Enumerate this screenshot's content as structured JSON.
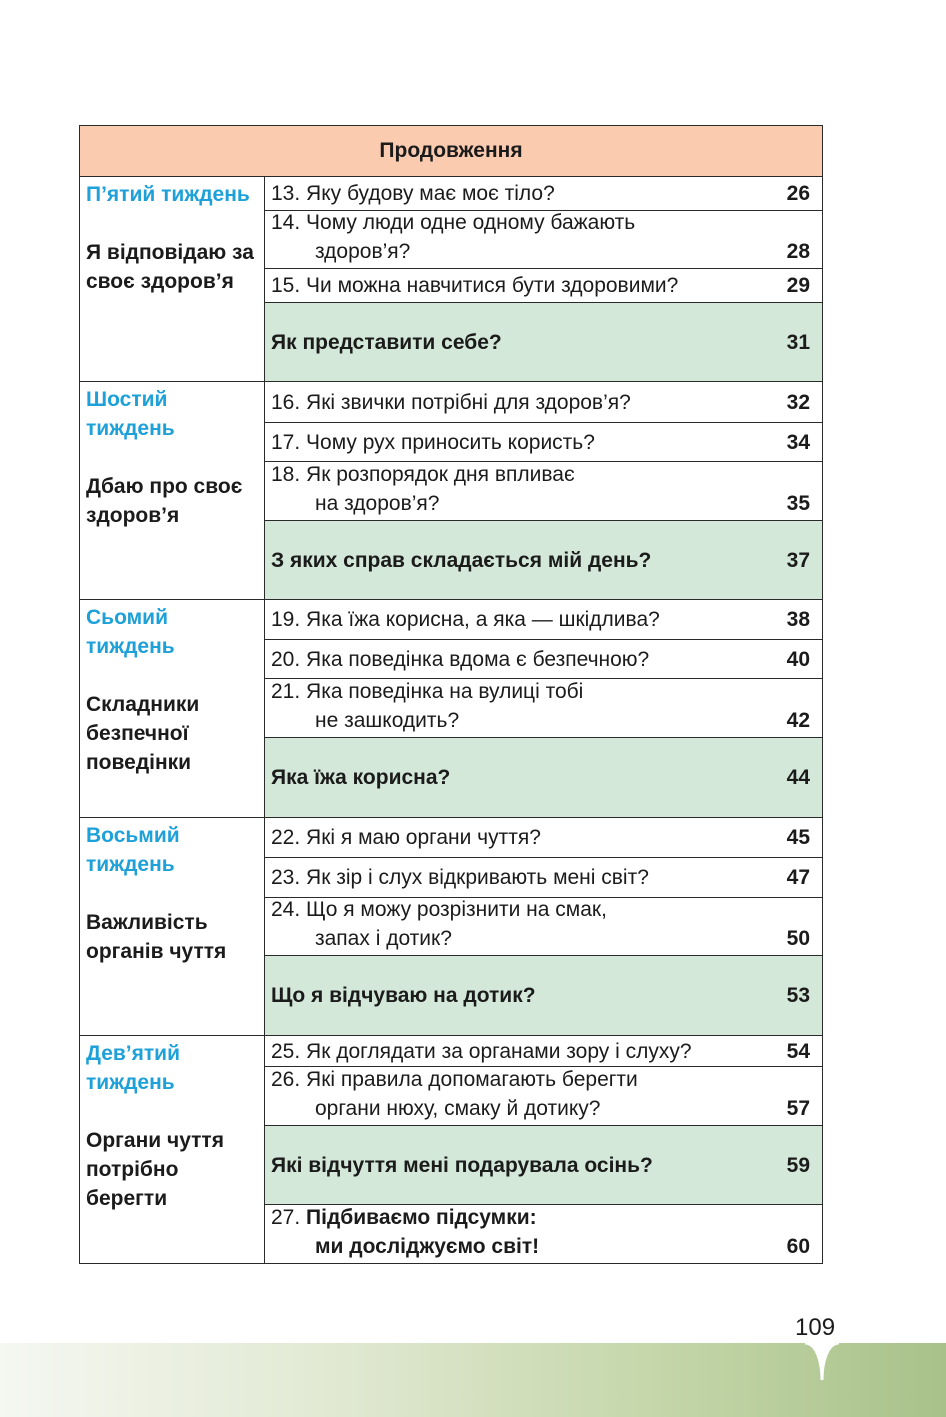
{
  "header": "Продовження",
  "weeks": [
    {
      "name": "П’ятий тиждень",
      "topic": "Я відповідаю за своє здоров’я",
      "lessons": [
        {
          "line1": "13. Яку будову має моє тіло?",
          "line2": "",
          "page": "26",
          "kind": "one",
          "h": 34
        },
        {
          "line1": "14. Чому люди одне одному бажають",
          "line2": "здоров’я?",
          "page": "28",
          "kind": "two",
          "h": 58
        },
        {
          "line1": "15. Чи можна навчитися бути здоровими?",
          "line2": "",
          "page": "29",
          "kind": "one",
          "h": 34
        },
        {
          "line1": "Як представити себе?",
          "line2": "",
          "page": "31",
          "kind": "summary",
          "h": 78
        }
      ]
    },
    {
      "name": "Шостий тиждень",
      "topic": "Дбаю про своє здоров’я",
      "lessons": [
        {
          "line1": "16. Які звички потрібні для здоров’я?",
          "line2": "",
          "page": "32",
          "kind": "one",
          "h": 41
        },
        {
          "line1": "17. Чому рух приносить користь?",
          "line2": "",
          "page": "34",
          "kind": "one",
          "h": 39
        },
        {
          "line1": "18. Як розпорядок дня впливає",
          "line2": "на здоров’я?",
          "page": "35",
          "kind": "two",
          "h": 59
        },
        {
          "line1": "З яких справ складається мій день?",
          "line2": "",
          "page": "37",
          "kind": "summary",
          "h": 78
        }
      ]
    },
    {
      "name": "Сьомий тиждень",
      "topic": "Складники безпечної поведінки",
      "lessons": [
        {
          "line1": "19. Яка їжа корисна, а яка — шкідлива?",
          "line2": "",
          "page": "38",
          "kind": "one",
          "h": 40
        },
        {
          "line1": "20. Яка поведінка вдома є безпечною?",
          "line2": "",
          "page": "40",
          "kind": "one",
          "h": 39
        },
        {
          "line1": "21. Яка поведінка на вулиці тобі",
          "line2": "не зашкодить?",
          "page": "42",
          "kind": "two",
          "h": 59
        },
        {
          "line1": "Яка їжа корисна?",
          "line2": "",
          "page": "44",
          "kind": "summary",
          "h": 79
        }
      ]
    },
    {
      "name": "Восьмий тиждень",
      "topic": "Важливість органів чуття",
      "lessons": [
        {
          "line1": "22. Які я маю органи чуття?",
          "line2": "",
          "page": "45",
          "kind": "one",
          "h": 40
        },
        {
          "line1": "23. Як зір і слух відкривають мені світ?",
          "line2": "",
          "page": "47",
          "kind": "one",
          "h": 40
        },
        {
          "line1": "24. Що я можу розрізнити на смак,",
          "line2": "запах і дотик?",
          "page": "50",
          "kind": "two",
          "h": 58
        },
        {
          "line1": "Що я відчуваю на дотик?",
          "line2": "",
          "page": "53",
          "kind": "summary",
          "h": 79
        }
      ]
    },
    {
      "name": "Дев’ятий тиждень",
      "topic": "Органи чуття потрібно берегти",
      "lessons": [
        {
          "line1": "25. Як доглядати за органами зору і слуху?",
          "line2": "",
          "page": "54",
          "kind": "one",
          "h": 31
        },
        {
          "line1": "26. Які правила допомагають берегти",
          "line2": "органи нюху, смаку й дотику?",
          "page": "57",
          "kind": "two",
          "h": 59
        },
        {
          "line1": "Які відчуття мені подарувала осінь?",
          "line2": "",
          "page": "59",
          "kind": "summary",
          "h": 79
        },
        {
          "line1_num": "27.",
          "line1": "Підбиваємо підсумки:",
          "line2": "ми досліджуємо світ!",
          "page": "60",
          "kind": "two-bold",
          "h": 58
        }
      ]
    }
  ],
  "page_number": "109"
}
